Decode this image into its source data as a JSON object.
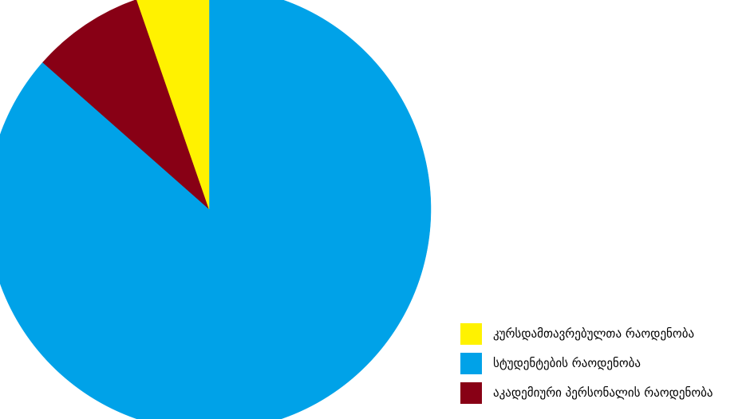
{
  "chart_data": {
    "type": "pie",
    "title": "",
    "start_angle_deg": 0,
    "direction": "clockwise",
    "slices": [
      {
        "label": "სტუდენტების რაოდენობა",
        "value": 86.5,
        "color": "#00A2E8"
      },
      {
        "label": "აკადემიური პერსონალის რაოდენობა",
        "value": 8.2,
        "color": "#880015"
      },
      {
        "label": "კურსდამთავრებულთა რაოდენობა",
        "value": 5.3,
        "color": "#FFF200"
      }
    ],
    "legend": {
      "position": "bottom-right",
      "entries": [
        {
          "label": "კურსდამთავრებულთა რაოდენობა",
          "color": "#FFF200"
        },
        {
          "label": "სტუდენტების რაოდენობა",
          "color": "#00A2E8"
        },
        {
          "label": "აკადემიური პერსონალის რაოდენობა",
          "color": "#880015"
        }
      ]
    }
  }
}
